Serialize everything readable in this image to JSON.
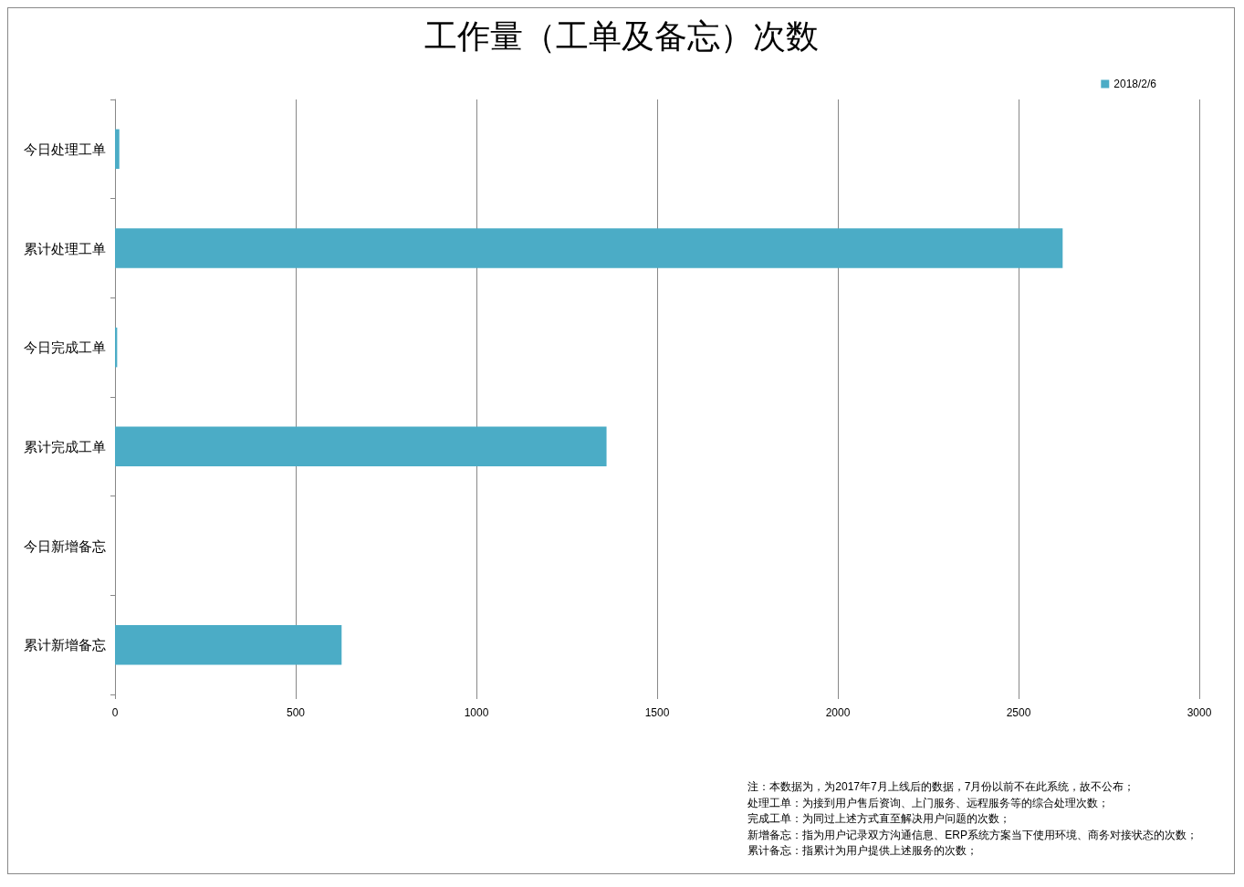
{
  "chart_data": {
    "type": "bar",
    "orientation": "horizontal",
    "title": "工作量（工单及备忘）次数",
    "categories": [
      "今日处理工单",
      "累计处理工单",
      "今日完成工单",
      "累计完成工单",
      "今日新增备忘",
      "累计新增备忘"
    ],
    "series": [
      {
        "name": "2018/2/6",
        "color": "#4bacc6",
        "values": [
          12,
          2622,
          6,
          1360,
          0,
          627
        ]
      }
    ],
    "xlim": [
      0,
      3000
    ],
    "xticks": [
      0,
      500,
      1000,
      1500,
      2000,
      2500,
      3000
    ],
    "grid": "x",
    "legend": "top right",
    "annotations": [
      "注：本数据为，为2017年7月上线后的数据，7月份以前不在此系统，故不公布；",
      "处理工单：为接到用户售后资询、上门服务、远程服务等的综合处理次数；",
      "完成工单：为同过上述方式直至解决用户问题的次数；",
      "新增备忘：指为用户记录双方沟通信息、ERP系统方案当下使用环境、商务对接状态的次数；",
      "累计备忘：指累计为用户提供上述服务的次数；"
    ]
  }
}
